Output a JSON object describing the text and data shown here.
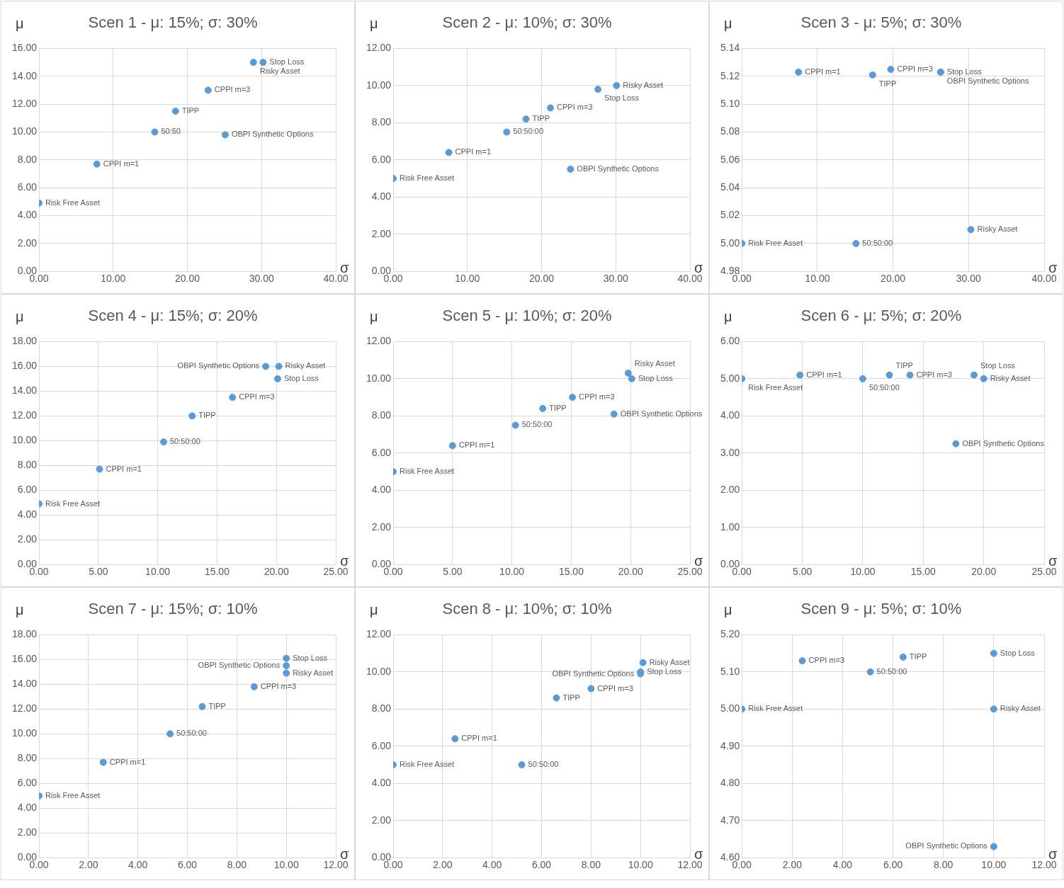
{
  "chart_data": [
    {
      "type": "scatter",
      "title": "Scen 1 - μ: 15%; σ: 30%",
      "xlabel": "σ",
      "ylabel": "μ",
      "color": "#5b9bd5",
      "marker": "circle",
      "grid": true,
      "x": [
        0,
        7.8,
        15.6,
        18.4,
        22.8,
        28.9,
        30.2,
        25.1
      ],
      "values": [
        4.9,
        7.7,
        10.0,
        11.5,
        13.0,
        15.0,
        15.0,
        9.8
      ],
      "xlim": [
        0,
        40
      ],
      "xticks": [
        {
          "value": 0,
          "label": "0.00"
        },
        {
          "value": 10,
          "label": "10.00"
        },
        {
          "value": 20,
          "label": "20.00"
        },
        {
          "value": 30,
          "label": "30.00"
        },
        {
          "value": 40,
          "label": "40.00"
        }
      ],
      "ylim": [
        0,
        16
      ],
      "yticks": [
        {
          "value": 0,
          "label": "0.00"
        },
        {
          "value": 2,
          "label": "2.00"
        },
        {
          "value": 4,
          "label": "4.00"
        },
        {
          "value": 6,
          "label": "6.00"
        },
        {
          "value": 8,
          "label": "8.00"
        },
        {
          "value": 10,
          "label": "10.00"
        },
        {
          "value": 12,
          "label": "12.00"
        },
        {
          "value": 14,
          "label": "14.00"
        },
        {
          "value": 16,
          "label": "16.00"
        }
      ],
      "annotations": [
        {
          "text": "Risk Free Asset",
          "x": 0,
          "y": 4.9
        },
        {
          "text": "CPPI m=1",
          "x": 7.8,
          "y": 7.7
        },
        {
          "text": "50:50",
          "x": 15.6,
          "y": 10.0
        },
        {
          "text": "TIPP",
          "x": 18.4,
          "y": 11.5
        },
        {
          "text": "CPPI m=3",
          "x": 22.8,
          "y": 13.0
        },
        {
          "text": "Risky Asset",
          "x": 28.9,
          "y": 15.0
        },
        {
          "text": "Stop Loss",
          "x": 30.2,
          "y": 15.0
        },
        {
          "text": "OBPI Synthetic Options",
          "x": 25.1,
          "y": 9.8
        }
      ]
    },
    {
      "type": "scatter",
      "title": "Scen 2 - μ: 10%; σ: 30%",
      "xlabel": "σ",
      "ylabel": "μ",
      "color": "#5b9bd5",
      "marker": "circle",
      "grid": true,
      "x": [
        0,
        7.5,
        15.3,
        17.9,
        21.2,
        27.6,
        30.1,
        23.9
      ],
      "values": [
        5.0,
        6.4,
        7.5,
        8.2,
        8.8,
        9.8,
        10.0,
        5.5
      ],
      "xlim": [
        0,
        40
      ],
      "xticks": [
        {
          "value": 0,
          "label": "0.00"
        },
        {
          "value": 10,
          "label": "10.00"
        },
        {
          "value": 20,
          "label": "20.00"
        },
        {
          "value": 30,
          "label": "30.00"
        },
        {
          "value": 40,
          "label": "40.00"
        }
      ],
      "ylim": [
        0,
        12
      ],
      "yticks": [
        {
          "value": 0,
          "label": "0.00"
        },
        {
          "value": 2,
          "label": "2.00"
        },
        {
          "value": 4,
          "label": "4.00"
        },
        {
          "value": 6,
          "label": "6.00"
        },
        {
          "value": 8,
          "label": "8.00"
        },
        {
          "value": 10,
          "label": "10.00"
        },
        {
          "value": 12,
          "label": "12.00"
        }
      ],
      "annotations": [
        {
          "text": "Risk Free Asset",
          "x": 0,
          "y": 5.0
        },
        {
          "text": "CPPI m=1",
          "x": 7.5,
          "y": 6.4
        },
        {
          "text": "50:50:00",
          "x": 15.3,
          "y": 7.5
        },
        {
          "text": "TIPP",
          "x": 17.9,
          "y": 8.2
        },
        {
          "text": "CPPI m=3",
          "x": 21.2,
          "y": 8.8
        },
        {
          "text": "Stop Loss",
          "x": 27.6,
          "y": 9.8
        },
        {
          "text": "Risky Asset",
          "x": 30.1,
          "y": 10.0
        },
        {
          "text": "OBPI Synthetic Options",
          "x": 23.9,
          "y": 5.5
        }
      ]
    },
    {
      "type": "scatter",
      "title": "Scen 3 - μ: 5%; σ: 30%",
      "xlabel": "σ",
      "ylabel": "μ",
      "color": "#5b9bd5",
      "marker": "circle",
      "grid": true,
      "x": [
        0,
        7.5,
        15.1,
        17.3,
        19.7,
        26.3,
        26.3,
        30.3
      ],
      "values": [
        5.0,
        5.123,
        5.0,
        5.121,
        5.125,
        5.123,
        5.123,
        5.01
      ],
      "xlim": [
        0,
        40
      ],
      "xticks": [
        {
          "value": 0,
          "label": "0.00"
        },
        {
          "value": 10,
          "label": "10.00"
        },
        {
          "value": 20,
          "label": "20.00"
        },
        {
          "value": 30,
          "label": "30.00"
        },
        {
          "value": 40,
          "label": "40.00"
        }
      ],
      "ylim": [
        4.98,
        5.14
      ],
      "yticks": [
        {
          "value": 4.98,
          "label": "4.98"
        },
        {
          "value": 5.0,
          "label": "5.00"
        },
        {
          "value": 5.02,
          "label": "5.02"
        },
        {
          "value": 5.04,
          "label": "5.04"
        },
        {
          "value": 5.06,
          "label": "5.06"
        },
        {
          "value": 5.08,
          "label": "5.08"
        },
        {
          "value": 5.1,
          "label": "5.10"
        },
        {
          "value": 5.12,
          "label": "5.12"
        },
        {
          "value": 5.14,
          "label": "5.14"
        }
      ],
      "annotations": [
        {
          "text": "Risk Free Asset",
          "x": 0,
          "y": 5.0
        },
        {
          "text": "CPPI m=1",
          "x": 7.5,
          "y": 5.123
        },
        {
          "text": "50:50:00",
          "x": 15.1,
          "y": 5.0
        },
        {
          "text": "TIPP",
          "x": 17.3,
          "y": 5.121
        },
        {
          "text": "CPPI m=3",
          "x": 19.7,
          "y": 5.125
        },
        {
          "text": "Stop Loss",
          "x": 26.3,
          "y": 5.123
        },
        {
          "text": "OBPI Synthetic Options",
          "x": 26.3,
          "y": 5.123
        },
        {
          "text": "Risky Asset",
          "x": 30.3,
          "y": 5.01
        }
      ]
    },
    {
      "type": "scatter",
      "title": "Scen 4 - μ: 15%; σ: 20%",
      "xlabel": "σ",
      "ylabel": "μ",
      "color": "#5b9bd5",
      "marker": "circle",
      "grid": true,
      "x": [
        0,
        5.1,
        10.5,
        12.9,
        16.3,
        19.1,
        20.2,
        20.1
      ],
      "values": [
        4.9,
        7.7,
        9.9,
        12.0,
        13.5,
        16.0,
        16.0,
        15.0
      ],
      "xlim": [
        0,
        25
      ],
      "xticks": [
        {
          "value": 0,
          "label": "0.00"
        },
        {
          "value": 5,
          "label": "5.00"
        },
        {
          "value": 10,
          "label": "10.00"
        },
        {
          "value": 15,
          "label": "15.00"
        },
        {
          "value": 20,
          "label": "20.00"
        },
        {
          "value": 25,
          "label": "25.00"
        }
      ],
      "ylim": [
        0,
        18
      ],
      "yticks": [
        {
          "value": 0,
          "label": "0.00"
        },
        {
          "value": 2,
          "label": "2.00"
        },
        {
          "value": 4,
          "label": "4.00"
        },
        {
          "value": 6,
          "label": "6.00"
        },
        {
          "value": 8,
          "label": "8.00"
        },
        {
          "value": 10,
          "label": "10.00"
        },
        {
          "value": 12,
          "label": "12.00"
        },
        {
          "value": 14,
          "label": "14.00"
        },
        {
          "value": 16,
          "label": "16.00"
        },
        {
          "value": 18,
          "label": "18.00"
        }
      ],
      "annotations": [
        {
          "text": "Risk Free Asset",
          "x": 0,
          "y": 4.9
        },
        {
          "text": "CPPI m=1",
          "x": 5.1,
          "y": 7.7
        },
        {
          "text": "50:50:00",
          "x": 10.5,
          "y": 9.9
        },
        {
          "text": "TIPP",
          "x": 12.9,
          "y": 12.0
        },
        {
          "text": "CPPI m=3",
          "x": 16.3,
          "y": 13.5
        },
        {
          "text": "OBPI Synthetic Options",
          "x": 19.1,
          "y": 16.0
        },
        {
          "text": "Risky Asset",
          "x": 20.2,
          "y": 16.0
        },
        {
          "text": "Stop Loss",
          "x": 20.1,
          "y": 15.0
        }
      ]
    },
    {
      "type": "scatter",
      "title": "Scen 5 - μ: 10%; σ: 20%",
      "xlabel": "σ",
      "ylabel": "μ",
      "color": "#5b9bd5",
      "marker": "circle",
      "grid": true,
      "x": [
        0,
        5.0,
        10.3,
        12.6,
        15.1,
        18.6,
        19.8,
        20.1
      ],
      "values": [
        5.0,
        6.4,
        7.5,
        8.4,
        9.0,
        8.1,
        10.3,
        10.0
      ],
      "xlim": [
        0,
        25
      ],
      "xticks": [
        {
          "value": 0,
          "label": "0.00"
        },
        {
          "value": 5,
          "label": "5.00"
        },
        {
          "value": 10,
          "label": "10.00"
        },
        {
          "value": 15,
          "label": "15.00"
        },
        {
          "value": 20,
          "label": "20.00"
        },
        {
          "value": 25,
          "label": "25.00"
        }
      ],
      "ylim": [
        0,
        12
      ],
      "yticks": [
        {
          "value": 0,
          "label": "0.00"
        },
        {
          "value": 2,
          "label": "2.00"
        },
        {
          "value": 4,
          "label": "4.00"
        },
        {
          "value": 6,
          "label": "6.00"
        },
        {
          "value": 8,
          "label": "8.00"
        },
        {
          "value": 10,
          "label": "10.00"
        },
        {
          "value": 12,
          "label": "12.00"
        }
      ],
      "annotations": [
        {
          "text": "Risk Free Asset",
          "x": 0,
          "y": 5.0
        },
        {
          "text": "CPPI m=1",
          "x": 5.0,
          "y": 6.4
        },
        {
          "text": "50:50:00",
          "x": 10.3,
          "y": 7.5
        },
        {
          "text": "TIPP",
          "x": 12.6,
          "y": 8.4
        },
        {
          "text": "CPPI m=3",
          "x": 15.1,
          "y": 9.0
        },
        {
          "text": "OBPI Synthetic Options",
          "x": 18.6,
          "y": 8.1
        },
        {
          "text": "Risky Asset",
          "x": 19.8,
          "y": 10.3
        },
        {
          "text": "Stop Loss",
          "x": 20.1,
          "y": 10.0
        }
      ]
    },
    {
      "type": "scatter",
      "title": "Scen 6 - μ: 5%; σ: 20%",
      "xlabel": "σ",
      "ylabel": "μ",
      "color": "#5b9bd5",
      "marker": "circle",
      "grid": true,
      "x": [
        0,
        4.8,
        10.0,
        12.2,
        13.9,
        19.2,
        20.0,
        17.7
      ],
      "values": [
        5.0,
        5.1,
        5.0,
        5.1,
        5.1,
        5.1,
        5.0,
        3.25
      ],
      "xlim": [
        0,
        25
      ],
      "xticks": [
        {
          "value": 0,
          "label": "0.00"
        },
        {
          "value": 5,
          "label": "5.00"
        },
        {
          "value": 10,
          "label": "10.00"
        },
        {
          "value": 15,
          "label": "15.00"
        },
        {
          "value": 20,
          "label": "20.00"
        },
        {
          "value": 25,
          "label": "25.00"
        }
      ],
      "ylim": [
        0,
        6
      ],
      "yticks": [
        {
          "value": 0,
          "label": "0.00"
        },
        {
          "value": 1,
          "label": "1.00"
        },
        {
          "value": 2,
          "label": "2.00"
        },
        {
          "value": 3,
          "label": "3.00"
        },
        {
          "value": 4,
          "label": "4.00"
        },
        {
          "value": 5,
          "label": "5.00"
        },
        {
          "value": 6,
          "label": "6.00"
        }
      ],
      "annotations": [
        {
          "text": "Risk Free Asset",
          "x": 0,
          "y": 5.0
        },
        {
          "text": "CPPI m=1",
          "x": 4.8,
          "y": 5.1
        },
        {
          "text": "50:50:00",
          "x": 10.0,
          "y": 5.0
        },
        {
          "text": "TIPP",
          "x": 12.2,
          "y": 5.1
        },
        {
          "text": "CPPI m=3",
          "x": 13.9,
          "y": 5.1
        },
        {
          "text": "Stop Loss",
          "x": 19.2,
          "y": 5.1
        },
        {
          "text": "Risky Asset",
          "x": 20.0,
          "y": 5.0
        },
        {
          "text": "OBPI Synthetic Options",
          "x": 17.7,
          "y": 3.25
        }
      ]
    },
    {
      "type": "scatter",
      "title": "Scen 7 - μ: 15%; σ: 10%",
      "xlabel": "σ",
      "ylabel": "μ",
      "color": "#5b9bd5",
      "marker": "circle",
      "grid": true,
      "x": [
        0,
        2.6,
        5.3,
        6.6,
        8.7,
        10.0,
        10.0,
        10.0
      ],
      "values": [
        5.0,
        7.7,
        10.0,
        12.2,
        13.8,
        16.1,
        15.5,
        14.9
      ],
      "xlim": [
        0,
        12
      ],
      "xticks": [
        {
          "value": 0,
          "label": "0.00"
        },
        {
          "value": 2,
          "label": "2.00"
        },
        {
          "value": 4,
          "label": "4.00"
        },
        {
          "value": 6,
          "label": "6.00"
        },
        {
          "value": 8,
          "label": "8.00"
        },
        {
          "value": 10,
          "label": "10.00"
        },
        {
          "value": 12,
          "label": "12.00"
        }
      ],
      "ylim": [
        0,
        18
      ],
      "yticks": [
        {
          "value": 0,
          "label": "0.00"
        },
        {
          "value": 2,
          "label": "2.00"
        },
        {
          "value": 4,
          "label": "4.00"
        },
        {
          "value": 6,
          "label": "6.00"
        },
        {
          "value": 8,
          "label": "8.00"
        },
        {
          "value": 10,
          "label": "10.00"
        },
        {
          "value": 12,
          "label": "12.00"
        },
        {
          "value": 14,
          "label": "14.00"
        },
        {
          "value": 16,
          "label": "16.00"
        },
        {
          "value": 18,
          "label": "18.00"
        }
      ],
      "annotations": [
        {
          "text": "Risk Free Asset",
          "x": 0,
          "y": 5.0
        },
        {
          "text": "CPPI m=1",
          "x": 2.6,
          "y": 7.7
        },
        {
          "text": "50:50:00",
          "x": 5.3,
          "y": 10.0
        },
        {
          "text": "TIPP",
          "x": 6.6,
          "y": 12.2
        },
        {
          "text": "CPPI m=3",
          "x": 8.7,
          "y": 13.8
        },
        {
          "text": "Stop Loss",
          "x": 10.0,
          "y": 16.1
        },
        {
          "text": "OBPI Synthetic Options",
          "x": 10.0,
          "y": 15.5
        },
        {
          "text": "Risky Asset",
          "x": 10.0,
          "y": 14.9
        }
      ]
    },
    {
      "type": "scatter",
      "title": "Scen 8 - μ: 10%; σ: 10%",
      "xlabel": "σ",
      "ylabel": "μ",
      "color": "#5b9bd5",
      "marker": "circle",
      "grid": true,
      "x": [
        0,
        2.5,
        5.2,
        6.6,
        8.0,
        10.1,
        10.0,
        10.0
      ],
      "values": [
        5.0,
        6.4,
        5.0,
        8.6,
        9.1,
        10.5,
        10.0,
        9.9
      ],
      "xlim": [
        0,
        12
      ],
      "xticks": [
        {
          "value": 0,
          "label": "0.00"
        },
        {
          "value": 2,
          "label": "2.00"
        },
        {
          "value": 4,
          "label": "4.00"
        },
        {
          "value": 6,
          "label": "6.00"
        },
        {
          "value": 8,
          "label": "8.00"
        },
        {
          "value": 10,
          "label": "10.00"
        },
        {
          "value": 12,
          "label": "12.00"
        }
      ],
      "ylim": [
        0,
        12
      ],
      "yticks": [
        {
          "value": 0,
          "label": "0.00"
        },
        {
          "value": 2,
          "label": "2.00"
        },
        {
          "value": 4,
          "label": "4.00"
        },
        {
          "value": 6,
          "label": "6.00"
        },
        {
          "value": 8,
          "label": "8.00"
        },
        {
          "value": 10,
          "label": "10.00"
        },
        {
          "value": 12,
          "label": "12.00"
        }
      ],
      "annotations": [
        {
          "text": "Risk Free Asset",
          "x": 0,
          "y": 5.0
        },
        {
          "text": "CPPI m=1",
          "x": 2.5,
          "y": 6.4
        },
        {
          "text": "50:50:00",
          "x": 5.2,
          "y": 5.0
        },
        {
          "text": "TIPP",
          "x": 6.6,
          "y": 8.6
        },
        {
          "text": "CPPI m=3",
          "x": 8.0,
          "y": 9.1
        },
        {
          "text": "Risky Asset",
          "x": 10.1,
          "y": 10.5
        },
        {
          "text": "Stop Loss",
          "x": 10.0,
          "y": 10.0
        },
        {
          "text": "OBPI Synthetic Options",
          "x": 10.0,
          "y": 9.9
        }
      ]
    },
    {
      "type": "scatter",
      "title": "Scen 9 - μ: 5%; σ: 10%",
      "xlabel": "σ",
      "ylabel": "μ",
      "color": "#5b9bd5",
      "marker": "circle",
      "grid": true,
      "x": [
        0,
        2.4,
        5.1,
        6.4,
        10.0,
        10.0,
        10.0
      ],
      "values": [
        5.0,
        5.13,
        5.1,
        5.14,
        5.15,
        5.0,
        4.63
      ],
      "xlim": [
        0,
        12
      ],
      "xticks": [
        {
          "value": 0,
          "label": "0.00"
        },
        {
          "value": 2,
          "label": "2.00"
        },
        {
          "value": 4,
          "label": "4.00"
        },
        {
          "value": 6,
          "label": "6.00"
        },
        {
          "value": 8,
          "label": "8.00"
        },
        {
          "value": 10,
          "label": "10.00"
        },
        {
          "value": 12,
          "label": "12.00"
        }
      ],
      "ylim": [
        4.6,
        5.2
      ],
      "yticks": [
        {
          "value": 4.6,
          "label": "4.60"
        },
        {
          "value": 4.7,
          "label": "4.70"
        },
        {
          "value": 4.8,
          "label": "4.80"
        },
        {
          "value": 4.9,
          "label": "4.90"
        },
        {
          "value": 5.0,
          "label": "5.00"
        },
        {
          "value": 5.1,
          "label": "5.10"
        },
        {
          "value": 5.2,
          "label": "5.20"
        }
      ],
      "annotations": [
        {
          "text": "Risk Free Asset",
          "x": 0,
          "y": 5.0
        },
        {
          "text": "CPPI m=3",
          "x": 2.4,
          "y": 5.13
        },
        {
          "text": "50:50:00",
          "x": 5.1,
          "y": 5.1
        },
        {
          "text": "TIPP",
          "x": 6.4,
          "y": 5.14
        },
        {
          "text": "Stop Loss",
          "x": 10.0,
          "y": 5.15
        },
        {
          "text": "Risky Asset",
          "x": 10.0,
          "y": 5.0
        },
        {
          "text": "OBPI Synthetic Options",
          "x": 10.0,
          "y": 4.63
        }
      ]
    }
  ]
}
